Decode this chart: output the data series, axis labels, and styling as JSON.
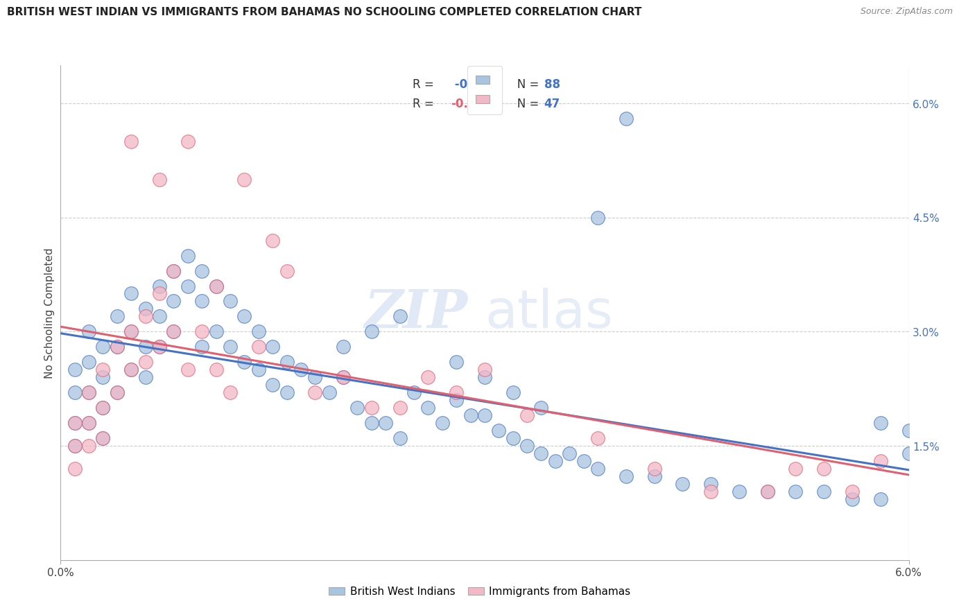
{
  "title": "BRITISH WEST INDIAN VS IMMIGRANTS FROM BAHAMAS NO SCHOOLING COMPLETED CORRELATION CHART",
  "source": "Source: ZipAtlas.com",
  "ylabel": "No Schooling Completed",
  "ytick_labels": [
    "1.5%",
    "3.0%",
    "4.5%",
    "6.0%"
  ],
  "ytick_values": [
    0.015,
    0.03,
    0.045,
    0.06
  ],
  "xmin": 0.0,
  "xmax": 0.06,
  "ymin": 0.0,
  "ymax": 0.065,
  "color_blue": "#A8C4E0",
  "color_pink": "#F2B8C6",
  "color_line_blue": "#4472C4",
  "color_line_pink": "#E06070",
  "watermark_zip": "ZIP",
  "watermark_atlas": "atlas",
  "legend_label1": "British West Indians",
  "legend_label2": "Immigrants from Bahamas",
  "blue_x": [
    0.001,
    0.001,
    0.001,
    0.001,
    0.002,
    0.002,
    0.002,
    0.002,
    0.003,
    0.003,
    0.003,
    0.003,
    0.004,
    0.004,
    0.004,
    0.005,
    0.005,
    0.005,
    0.006,
    0.006,
    0.006,
    0.007,
    0.007,
    0.007,
    0.008,
    0.008,
    0.008,
    0.009,
    0.009,
    0.01,
    0.01,
    0.01,
    0.011,
    0.011,
    0.012,
    0.012,
    0.013,
    0.013,
    0.014,
    0.014,
    0.015,
    0.015,
    0.016,
    0.016,
    0.017,
    0.018,
    0.019,
    0.02,
    0.021,
    0.022,
    0.023,
    0.024,
    0.025,
    0.026,
    0.027,
    0.028,
    0.029,
    0.03,
    0.031,
    0.032,
    0.033,
    0.034,
    0.035,
    0.036,
    0.037,
    0.038,
    0.04,
    0.042,
    0.044,
    0.046,
    0.048,
    0.05,
    0.052,
    0.054,
    0.056,
    0.058,
    0.028,
    0.03,
    0.032,
    0.034,
    0.02,
    0.022,
    0.024,
    0.038,
    0.04,
    0.058,
    0.06,
    0.06
  ],
  "blue_y": [
    0.025,
    0.022,
    0.018,
    0.015,
    0.03,
    0.026,
    0.022,
    0.018,
    0.028,
    0.024,
    0.02,
    0.016,
    0.032,
    0.028,
    0.022,
    0.035,
    0.03,
    0.025,
    0.033,
    0.028,
    0.024,
    0.036,
    0.032,
    0.028,
    0.038,
    0.034,
    0.03,
    0.04,
    0.036,
    0.038,
    0.034,
    0.028,
    0.036,
    0.03,
    0.034,
    0.028,
    0.032,
    0.026,
    0.03,
    0.025,
    0.028,
    0.023,
    0.026,
    0.022,
    0.025,
    0.024,
    0.022,
    0.024,
    0.02,
    0.018,
    0.018,
    0.016,
    0.022,
    0.02,
    0.018,
    0.021,
    0.019,
    0.019,
    0.017,
    0.016,
    0.015,
    0.014,
    0.013,
    0.014,
    0.013,
    0.012,
    0.011,
    0.011,
    0.01,
    0.01,
    0.009,
    0.009,
    0.009,
    0.009,
    0.008,
    0.008,
    0.026,
    0.024,
    0.022,
    0.02,
    0.028,
    0.03,
    0.032,
    0.045,
    0.058,
    0.018,
    0.017,
    0.014
  ],
  "pink_x": [
    0.001,
    0.001,
    0.001,
    0.002,
    0.002,
    0.002,
    0.003,
    0.003,
    0.003,
    0.004,
    0.004,
    0.005,
    0.005,
    0.006,
    0.006,
    0.007,
    0.007,
    0.008,
    0.008,
    0.009,
    0.01,
    0.011,
    0.012,
    0.013,
    0.014,
    0.015,
    0.016,
    0.018,
    0.02,
    0.022,
    0.024,
    0.026,
    0.028,
    0.03,
    0.033,
    0.038,
    0.042,
    0.046,
    0.05,
    0.052,
    0.054,
    0.056,
    0.058,
    0.005,
    0.007,
    0.009,
    0.011
  ],
  "pink_y": [
    0.018,
    0.015,
    0.012,
    0.022,
    0.018,
    0.015,
    0.025,
    0.02,
    0.016,
    0.028,
    0.022,
    0.03,
    0.025,
    0.032,
    0.026,
    0.035,
    0.028,
    0.038,
    0.03,
    0.025,
    0.03,
    0.025,
    0.022,
    0.05,
    0.028,
    0.042,
    0.038,
    0.022,
    0.024,
    0.02,
    0.02,
    0.024,
    0.022,
    0.025,
    0.019,
    0.016,
    0.012,
    0.009,
    0.009,
    0.012,
    0.012,
    0.009,
    0.013,
    0.055,
    0.05,
    0.055,
    0.036
  ],
  "blue_R": -0.189,
  "blue_N": 88,
  "pink_R": -0.004,
  "pink_N": 47
}
